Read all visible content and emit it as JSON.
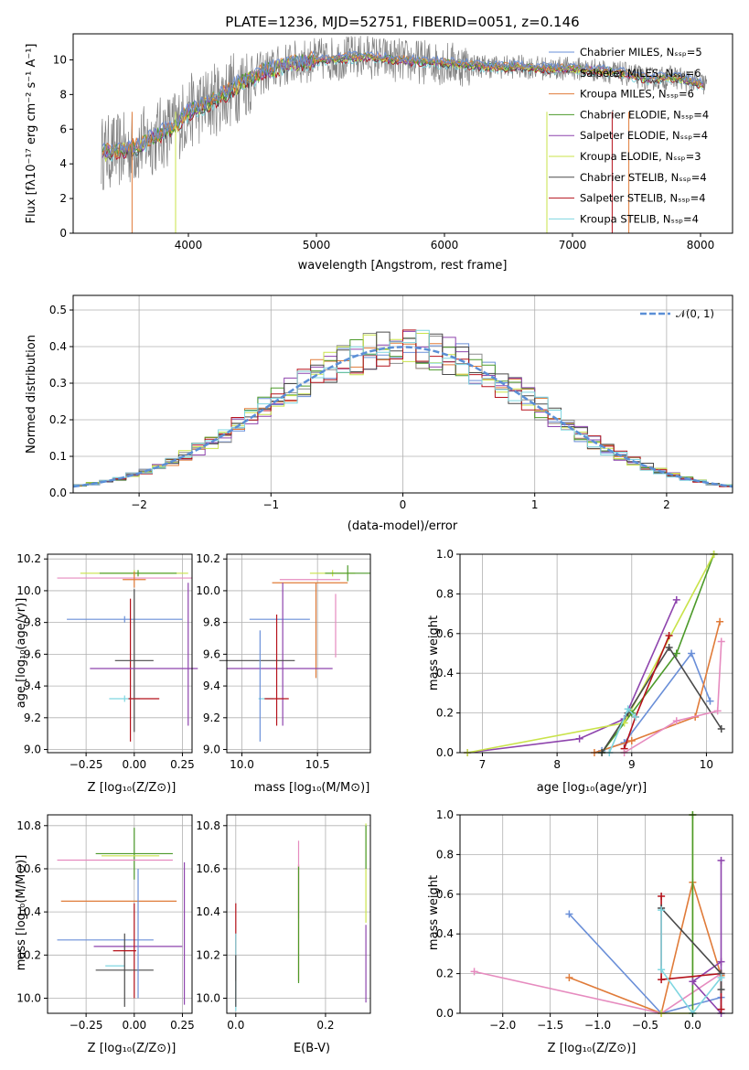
{
  "colors": {
    "cm": "#6a8fd8",
    "sm": "#e07b39",
    "km": "#8c8c8c",
    "ce": "#4c9a2a",
    "se": "#8e44ad",
    "ke": "#c9e34a",
    "cs": "#4a4a4a",
    "ss": "#b5121b",
    "ks": "#7fd6e0",
    "pink": "#e68bbf",
    "normal": "#5b8fd6"
  },
  "chart_data": [
    {
      "id": "spectrum",
      "type": "line",
      "title": "PLATE=1236, MJD=52751, FIBERID=0051, z=0.146",
      "xlabel": "wavelength [Angstrom, rest frame]",
      "ylabel": "Flux [fλ10⁻¹⁷ erg cm⁻² s⁻¹ A⁻¹]",
      "xlim": [
        3100,
        8250
      ],
      "ylim": [
        0,
        11.5
      ],
      "xticks": [
        4000,
        5000,
        6000,
        7000,
        8000
      ],
      "yticks": [
        0,
        2,
        4,
        6,
        8,
        10
      ],
      "grid": false,
      "legend_position": "right",
      "legend": [
        {
          "label": "Chabrier MILES, Nₛₛₚ=5",
          "color": "cm"
        },
        {
          "label": "Salpeter MILES, Nₛₛₚ=6",
          "color": "km"
        },
        {
          "label": "Kroupa MILES, Nₛₛₚ=6",
          "color": "sm"
        },
        {
          "label": "Chabrier ELODIE, Nₛₛₚ=4",
          "color": "ce"
        },
        {
          "label": "Salpeter ELODIE, Nₛₛₚ=4",
          "color": "se"
        },
        {
          "label": "Kroupa ELODIE, Nₛₛₚ=3",
          "color": "ke"
        },
        {
          "label": "Chabrier STELIB, Nₛₛₚ=4",
          "color": "cs"
        },
        {
          "label": "Salpeter STELIB, Nₛₛₚ=4",
          "color": "ss"
        },
        {
          "label": "Kroupa STELIB, Nₛₛₚ=4",
          "color": "ks"
        }
      ],
      "continuum": {
        "x": [
          3300,
          3400,
          3500,
          3600,
          3700,
          3800,
          3900,
          4000,
          4100,
          4200,
          4300,
          4400,
          4500,
          4600,
          4800,
          5000,
          5200,
          5400,
          5600,
          5800,
          6000,
          6200,
          6400,
          6600,
          6800,
          7000,
          7200,
          7400,
          7600,
          7800,
          8000
        ],
        "y": [
          4.6,
          4.7,
          4.8,
          5.0,
          5.4,
          5.8,
          6.2,
          7.0,
          7.3,
          7.7,
          8.1,
          8.6,
          9.0,
          9.3,
          9.8,
          10.0,
          10.1,
          10.2,
          10.0,
          9.9,
          9.8,
          9.7,
          9.6,
          9.6,
          9.5,
          9.5,
          9.4,
          9.2,
          8.9,
          9.0,
          8.6
        ]
      }
    },
    {
      "id": "residuals",
      "type": "histogram",
      "xlabel": "(data-model)/error",
      "ylabel": "Normed distribution",
      "xlim": [
        -2.5,
        2.5
      ],
      "ylim": [
        0,
        0.54
      ],
      "xticks": [
        -2,
        -1,
        0,
        1,
        2
      ],
      "yticks": [
        0.0,
        0.1,
        0.2,
        0.3,
        0.4,
        0.5
      ],
      "grid": true,
      "legend_position": "top-right",
      "normal_label": "𝒩(0, 1)",
      "bin_width": 0.1
    },
    {
      "id": "age_vs_z",
      "type": "errorbar",
      "xlabel": "Z [log₁₀(Z/Z⊙)]",
      "ylabel": "age  [log₁₀(age/yr)]",
      "xlim": [
        -0.45,
        0.3
      ],
      "ylim": [
        8.98,
        10.23
      ],
      "xticks": [
        -0.25,
        0.0,
        0.25
      ],
      "xtick_labels": [
        "−0.25",
        "0.00",
        "0.25"
      ],
      "yticks": [
        9.0,
        9.2,
        9.4,
        9.6,
        9.8,
        10.0,
        10.2
      ],
      "grid": true
    },
    {
      "id": "age_vs_mass",
      "type": "errorbar",
      "xlabel": "mass [log₁₀(M/M⊙)]",
      "xlim": [
        9.9,
        10.85
      ],
      "ylim": [
        8.98,
        10.23
      ],
      "xticks": [
        10.0,
        10.5
      ],
      "yticks": [
        9.0,
        9.2,
        9.4,
        9.6,
        9.8,
        10.0,
        10.2
      ],
      "grid": true
    },
    {
      "id": "weight_vs_age",
      "type": "line",
      "xlabel": "age  [log₁₀(age/yr)]",
      "ylabel": "mass weight",
      "xlim": [
        6.7,
        10.35
      ],
      "ylim": [
        0,
        1.0
      ],
      "xticks": [
        7,
        8,
        9,
        10
      ],
      "yticks": [
        0.0,
        0.2,
        0.4,
        0.6,
        0.8,
        1.0
      ],
      "grid": true,
      "series": [
        {
          "color": "cm",
          "x": [
            8.6,
            8.9,
            9.8,
            10.05
          ],
          "y": [
            0.01,
            0.05,
            0.5,
            0.26
          ]
        },
        {
          "color": "sm",
          "x": [
            8.5,
            9.0,
            9.85,
            10.18
          ],
          "y": [
            0.0,
            0.06,
            0.18,
            0.66
          ]
        },
        {
          "color": "se",
          "x": [
            6.8,
            8.3,
            8.9,
            9.6
          ],
          "y": [
            0.0,
            0.07,
            0.17,
            0.77
          ]
        },
        {
          "color": "ce",
          "x": [
            8.6,
            9.0,
            9.6,
            10.1
          ],
          "y": [
            0.0,
            0.2,
            0.5,
            1.0
          ]
        },
        {
          "color": "ke",
          "x": [
            6.8,
            8.9,
            10.1
          ],
          "y": [
            0.0,
            0.15,
            1.0
          ]
        },
        {
          "color": "cs",
          "x": [
            8.6,
            8.95,
            9.5,
            10.2
          ],
          "y": [
            0.0,
            0.2,
            0.53,
            0.12
          ]
        },
        {
          "color": "ss",
          "x": [
            8.9,
            9.05,
            9.5
          ],
          "y": [
            0.02,
            0.18,
            0.59
          ]
        },
        {
          "color": "pink",
          "x": [
            8.9,
            9.6,
            10.15,
            10.2
          ],
          "y": [
            0.0,
            0.16,
            0.21,
            0.56
          ]
        },
        {
          "color": "ks",
          "x": [
            8.7,
            8.95,
            9.05
          ],
          "y": [
            0.0,
            0.22,
            0.18
          ]
        }
      ]
    },
    {
      "id": "mass_vs_z",
      "type": "errorbar",
      "xlabel": "Z [log₁₀(Z/Z⊙)]",
      "ylabel": "mass [log₁₀(M/M⊙)]",
      "xlim": [
        -0.45,
        0.3
      ],
      "ylim": [
        9.93,
        10.85
      ],
      "xticks": [
        -0.25,
        0.0,
        0.25
      ],
      "xtick_labels": [
        "−0.25",
        "0.00",
        "0.25"
      ],
      "yticks": [
        10.0,
        10.2,
        10.4,
        10.6,
        10.8
      ],
      "grid": true
    },
    {
      "id": "mass_vs_ebv",
      "type": "errorbar",
      "xlabel": "E(B-V)",
      "xlim": [
        -0.02,
        0.3
      ],
      "ylim": [
        9.93,
        10.85
      ],
      "xticks": [
        0.0,
        0.2
      ],
      "yticks": [
        10.0,
        10.2,
        10.4,
        10.6,
        10.8
      ],
      "grid": true
    },
    {
      "id": "weight_vs_z",
      "type": "line",
      "xlabel": "Z [log₁₀(Z/Z⊙)]",
      "ylabel": "mass weight",
      "xlim": [
        -2.45,
        0.42
      ],
      "ylim": [
        0,
        1.0
      ],
      "xticks": [
        -2.0,
        -1.5,
        -1.0,
        -0.5,
        0.0
      ],
      "xtick_labels": [
        "−2.0",
        "−1.5",
        "−1.0",
        "−0.5",
        "0.0"
      ],
      "yticks": [
        0.0,
        0.2,
        0.4,
        0.6,
        0.8,
        1.0
      ],
      "grid": true,
      "series": [
        {
          "color": "cm",
          "x": [
            -1.3,
            -0.33,
            0.3
          ],
          "y": [
            0.5,
            0.0,
            0.08
          ]
        },
        {
          "color": "sm",
          "x": [
            -1.3,
            -0.33,
            0.0,
            0.3
          ],
          "y": [
            0.18,
            0.0,
            0.66,
            0.19
          ]
        },
        {
          "color": "pink",
          "x": [
            -2.3,
            -0.33,
            0.3
          ],
          "y": [
            0.21,
            0.0,
            0.2
          ]
        },
        {
          "color": "ke",
          "x": [
            0.0,
            0.0,
            -0.33
          ],
          "y": [
            1.0,
            0.0,
            0.0
          ]
        },
        {
          "color": "ce",
          "x": [
            0.0,
            0.0
          ],
          "y": [
            1.0,
            0.0
          ]
        },
        {
          "color": "se",
          "x": [
            0.3,
            0.3,
            0.0,
            0.3
          ],
          "y": [
            0.77,
            0.0,
            0.16,
            0.26
          ]
        },
        {
          "color": "ss",
          "x": [
            -0.33,
            -0.33,
            0.3,
            0.3
          ],
          "y": [
            0.59,
            0.17,
            0.2,
            0.02
          ]
        },
        {
          "color": "cs",
          "x": [
            -0.33,
            0.3,
            0.3
          ],
          "y": [
            0.53,
            0.2,
            0.12
          ]
        },
        {
          "color": "ks",
          "x": [
            -0.33,
            -0.33,
            0.0,
            0.3
          ],
          "y": [
            0.52,
            0.22,
            0.0,
            0.18
          ]
        }
      ]
    }
  ]
}
